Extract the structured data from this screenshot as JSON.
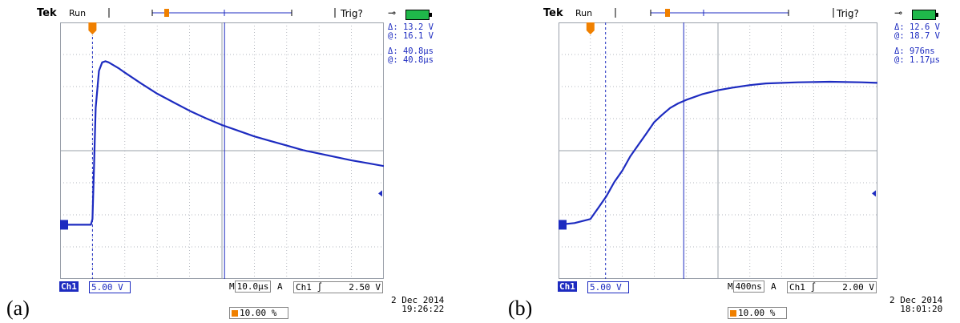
{
  "panels": [
    {
      "id": "a",
      "figure_label": "(a)",
      "brand": "Tek",
      "run_state": "Run",
      "trigger_status": "Trig?",
      "channel_tag": "Ch1",
      "volts_per_div": "5.00 V",
      "timebase_prefix": "M",
      "timebase": "10.0μs",
      "trigger_mode": "A",
      "trigger_source": "Ch1",
      "trigger_slope_symbol": "∫",
      "trigger_level": "2.50 V",
      "trigger_position": "10.00 %",
      "date": "2 Dec  2014",
      "time": "19:26:22",
      "cursor_readouts": [
        {
          "label": "Δ:",
          "value": "13.2 V"
        },
        {
          "label": "@:",
          "value": "16.1 V"
        },
        {
          "label": "Δ:",
          "value": "40.8μs"
        },
        {
          "label": "@:",
          "value": "40.8μs"
        }
      ],
      "colors": {
        "trace": "#1d2bc0",
        "grid": "#9aa0aa",
        "trigger_marker": "#f08000",
        "battery": "#1fb84a"
      }
    },
    {
      "id": "b",
      "figure_label": "(b)",
      "brand": "Tek",
      "run_state": "Run",
      "trigger_status": "Trig?",
      "channel_tag": "Ch1",
      "volts_per_div": "5.00 V",
      "timebase_prefix": "M",
      "timebase": "400ns",
      "trigger_mode": "A",
      "trigger_source": "Ch1",
      "trigger_slope_symbol": "∫",
      "trigger_level": "2.00 V",
      "trigger_position": "10.00 %",
      "date": "2 Dec  2014",
      "time": "18:01:20",
      "cursor_readouts": [
        {
          "label": "Δ:",
          "value": "12.6 V"
        },
        {
          "label": "@:",
          "value": "18.7 V"
        },
        {
          "label": "Δ:",
          "value": "976ns"
        },
        {
          "label": "@:",
          "value": "1.17μs"
        }
      ],
      "colors": {
        "trace": "#1d2bc0",
        "grid": "#9aa0aa",
        "trigger_marker": "#f08000",
        "battery": "#1fb84a"
      }
    }
  ],
  "chart_data": [
    {
      "type": "line",
      "title": "",
      "xlabel": "",
      "ylabel": "",
      "x_unit": "μs",
      "y_unit": "V",
      "x_range": [
        -10,
        90
      ],
      "y_range": [
        -25,
        20
      ],
      "grid": true,
      "series": [
        {
          "x": [
            -10,
            -4,
            -0.5,
            0,
            0.5,
            1,
            2,
            3,
            4,
            5,
            8,
            10,
            15,
            20,
            25,
            30,
            35,
            40,
            45,
            50,
            55,
            60,
            65,
            70,
            75,
            80,
            85,
            90
          ],
          "y": [
            -15.5,
            -15.5,
            -15.5,
            -14.5,
            -5,
            5,
            11.5,
            13.0,
            13.2,
            13.0,
            12.0,
            11.2,
            9.3,
            7.5,
            6.0,
            4.5,
            3.2,
            2.0,
            1.0,
            0.0,
            -0.8,
            -1.6,
            -2.4,
            -3.0,
            -3.6,
            -4.2,
            -4.7,
            -5.2
          ]
        }
      ],
      "cursors": {
        "vertical_us": [
          0,
          40.8
        ],
        "horizontal_V": [
          -13.2,
          0
        ]
      }
    },
    {
      "type": "line",
      "title": "",
      "xlabel": "",
      "ylabel": "",
      "x_unit": "μs",
      "y_unit": "V",
      "x_range": [
        -0.4,
        3.6
      ],
      "y_range": [
        -25,
        20
      ],
      "grid": true,
      "series": [
        {
          "x": [
            -0.4,
            -0.2,
            0.0,
            0.1,
            0.2,
            0.3,
            0.4,
            0.5,
            0.6,
            0.7,
            0.8,
            0.9,
            1.0,
            1.1,
            1.2,
            1.4,
            1.6,
            1.8,
            2.0,
            2.2,
            2.6,
            3.0,
            3.4,
            3.6
          ],
          "y": [
            -15.5,
            -15.2,
            -14.5,
            -12.5,
            -10.5,
            -8.0,
            -6.0,
            -3.5,
            -1.5,
            0.5,
            2.5,
            3.8,
            5.0,
            5.8,
            6.4,
            7.4,
            8.1,
            8.6,
            9.0,
            9.3,
            9.5,
            9.6,
            9.5,
            9.4
          ]
        }
      ],
      "cursors": {
        "vertical_us": [
          0.19,
          1.17
        ],
        "horizontal_V": [
          -8.5,
          0
        ]
      }
    }
  ]
}
